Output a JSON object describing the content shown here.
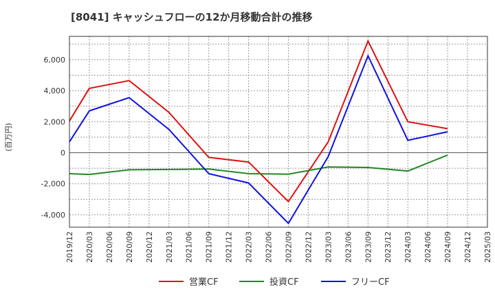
{
  "chart_data": {
    "type": "line",
    "title": "[8041]  キャッシュフローの12か月移動合計の推移",
    "ylabel": "(百万円)",
    "xlabel": "",
    "ylim": [
      -4800,
      7500
    ],
    "yticks": [
      -4000,
      -2000,
      0,
      2000,
      4000,
      6000
    ],
    "ytick_labels": [
      "-4,000",
      "-2,000",
      "0",
      "2,000",
      "4,000",
      "6,000"
    ],
    "categories": [
      "2019/12",
      "2020/03",
      "2020/06",
      "2020/09",
      "2020/12",
      "2021/03",
      "2021/06",
      "2021/09",
      "2021/12",
      "2022/03",
      "2022/06",
      "2022/09",
      "2022/12",
      "2023/03",
      "2023/06",
      "2023/09",
      "2023/12",
      "2024/03",
      "2024/06",
      "2024/09",
      "2024/12",
      "2025/03"
    ],
    "grid": true,
    "legend_position": "bottom",
    "series": [
      {
        "name": "営業CF",
        "color": "#dd1111",
        "points": [
          {
            "x": "2019/12",
            "y": 2050
          },
          {
            "x": "2020/03",
            "y": 4150
          },
          {
            "x": "2020/09",
            "y": 4650
          },
          {
            "x": "2021/03",
            "y": 2600
          },
          {
            "x": "2021/09",
            "y": -300
          },
          {
            "x": "2022/03",
            "y": -600
          },
          {
            "x": "2022/09",
            "y": -3150
          },
          {
            "x": "2023/03",
            "y": 700
          },
          {
            "x": "2023/09",
            "y": 7200
          },
          {
            "x": "2024/03",
            "y": 2000
          },
          {
            "x": "2024/09",
            "y": 1550
          }
        ]
      },
      {
        "name": "投資CF",
        "color": "#228822",
        "points": [
          {
            "x": "2019/12",
            "y": -1350
          },
          {
            "x": "2020/03",
            "y": -1400
          },
          {
            "x": "2020/09",
            "y": -1100
          },
          {
            "x": "2021/03",
            "y": -1080
          },
          {
            "x": "2021/09",
            "y": -1050
          },
          {
            "x": "2022/03",
            "y": -1350
          },
          {
            "x": "2022/09",
            "y": -1380
          },
          {
            "x": "2023/03",
            "y": -920
          },
          {
            "x": "2023/09",
            "y": -950
          },
          {
            "x": "2024/03",
            "y": -1180
          },
          {
            "x": "2024/09",
            "y": -150
          }
        ]
      },
      {
        "name": "フリーCF",
        "color": "#1111dd",
        "points": [
          {
            "x": "2019/12",
            "y": 700
          },
          {
            "x": "2020/03",
            "y": 2700
          },
          {
            "x": "2020/09",
            "y": 3550
          },
          {
            "x": "2021/03",
            "y": 1500
          },
          {
            "x": "2021/09",
            "y": -1350
          },
          {
            "x": "2022/03",
            "y": -1950
          },
          {
            "x": "2022/09",
            "y": -4550
          },
          {
            "x": "2023/03",
            "y": -250
          },
          {
            "x": "2023/09",
            "y": 6250
          },
          {
            "x": "2024/03",
            "y": 800
          },
          {
            "x": "2024/09",
            "y": 1350
          }
        ]
      }
    ]
  }
}
